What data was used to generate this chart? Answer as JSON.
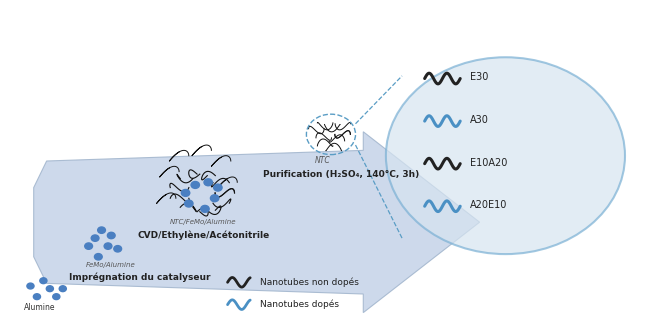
{
  "title": "",
  "background_color": "#ffffff",
  "arrow_color": "#c5d3e8",
  "arrow_edge_color": "#a0b4cc",
  "circle_color": "#d6e4f0",
  "circle_edge_color": "#7ab0d4",
  "dashed_line_color": "#5a9dc5",
  "black_tube_color": "#222222",
  "blue_tube_color": "#4a90c4",
  "blue_dot_color": "#4a7fc1",
  "labels": {
    "alumine": "Alumine",
    "femo_alumine": "FeMo/Alumine",
    "impregnation": "Imprégnation du catalyseur",
    "ntc_femo": "NTC/FeMo/Alumine",
    "cvd": "CVD/Ethylène/Acétonitrile",
    "ntc": "NTC",
    "purification": "Purification (H₂SO₄, 140°C, 3h)",
    "non_dopes": "Nanotubes non dopés",
    "dopes": "Nanotubes dopés",
    "E30": "E30",
    "A30": "A30",
    "E10A20": "E10A20",
    "A20E10": "A20E10"
  },
  "figsize": [
    6.49,
    3.22
  ],
  "dpi": 100
}
